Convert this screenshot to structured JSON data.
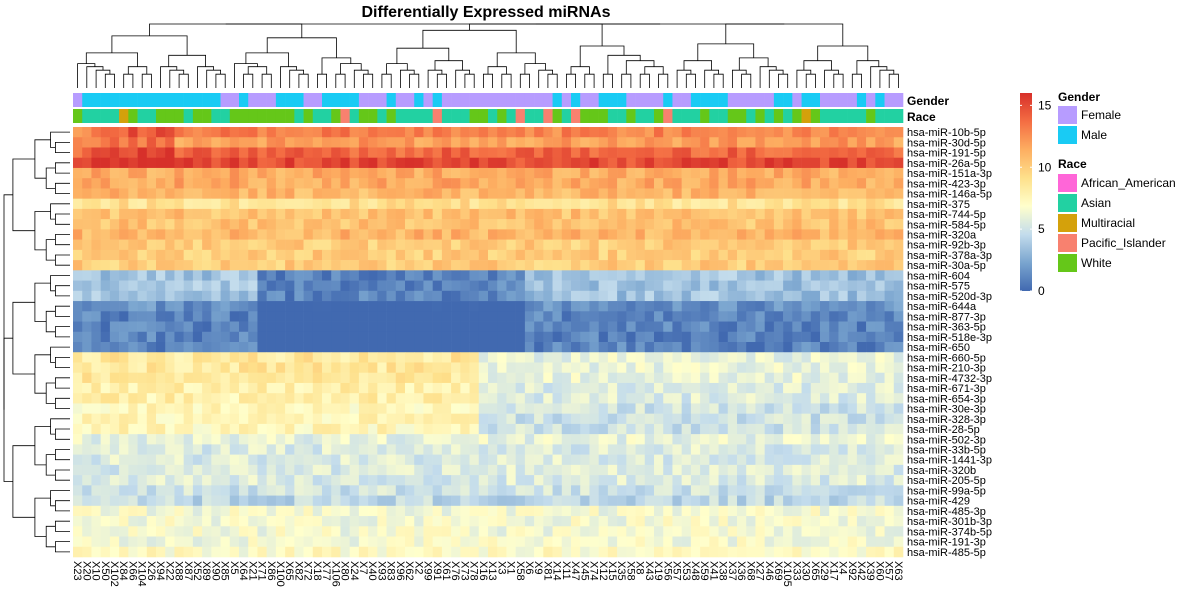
{
  "chart_data": {
    "type": "heatmap",
    "title": "Differentially Expressed miRNAs",
    "rows": [
      "hsa-miR-10b-5p",
      "hsa-miR-30d-5p",
      "hsa-miR-191-5p",
      "hsa-miR-26a-5p",
      "hsa-miR-151a-3p",
      "hsa-miR-423-3p",
      "hsa-miR-146a-5p",
      "hsa-miR-375",
      "hsa-miR-744-5p",
      "hsa-miR-584-5p",
      "hsa-miR-320a",
      "hsa-miR-92b-3p",
      "hsa-miR-378a-3p",
      "hsa-miR-30a-5p",
      "hsa-miR-604",
      "hsa-miR-575",
      "hsa-miR-520d-3p",
      "hsa-miR-644a",
      "hsa-miR-877-3p",
      "hsa-miR-363-5p",
      "hsa-miR-518e-3p",
      "hsa-miR-650",
      "hsa-miR-660-5p",
      "hsa-miR-210-3p",
      "hsa-miR-4732-3p",
      "hsa-miR-671-3p",
      "hsa-miR-654-3p",
      "hsa-miR-30e-3p",
      "hsa-miR-328-3p",
      "hsa-miR-28-5p",
      "hsa-miR-502-3p",
      "hsa-miR-33b-5p",
      "hsa-miR-1441-3p",
      "hsa-miR-320b",
      "hsa-miR-205-5p",
      "hsa-miR-99a-5p",
      "hsa-miR-429",
      "hsa-miR-485-3p",
      "hsa-miR-301b-3p",
      "hsa-miR-374b-5p",
      "hsa-miR-191-3p",
      "hsa-miR-485-5p"
    ],
    "columns": [
      "X23",
      "X20",
      "X10",
      "X50",
      "X102",
      "X84",
      "X66",
      "X104",
      "X26",
      "X94",
      "X22",
      "X88",
      "X87",
      "X52",
      "X89",
      "X90",
      "X85",
      "X5",
      "X64",
      "X21",
      "X71",
      "X86",
      "X100",
      "X65",
      "X82",
      "X72",
      "X18",
      "X77",
      "X106",
      "X80",
      "X24",
      "X7",
      "X40",
      "X93",
      "X83",
      "X96",
      "X62",
      "X2",
      "X99",
      "X91",
      "X61",
      "X76",
      "X73",
      "X78",
      "X16",
      "X13",
      "X3",
      "X1",
      "X58",
      "X6",
      "X9",
      "X81",
      "X14",
      "X11",
      "X47",
      "X45",
      "X74",
      "X12",
      "X15",
      "X35",
      "X58",
      "X8",
      "X43",
      "X19",
      "X56",
      "X57",
      "X53",
      "X48",
      "X59",
      "X41",
      "X38",
      "X37",
      "X36",
      "X68",
      "X27",
      "X46",
      "X69",
      "X105",
      "X33",
      "X30",
      "X65",
      "X29",
      "X17",
      "X4",
      "X92",
      "X42",
      "X39",
      "X60",
      "X57",
      "X63"
    ],
    "row_group_means": [
      13,
      12,
      14,
      15,
      11.5,
      11.5,
      11,
      9,
      10.5,
      10.5,
      11,
      10,
      10,
      10,
      3.5,
      3.5,
      3.5,
      1.5,
      1,
      1,
      1,
      1,
      8.5,
      8.5,
      8.5,
      8,
      8,
      7.5,
      7.5,
      7.5,
      6,
      5.5,
      5.5,
      5.5,
      5.5,
      5,
      4.5,
      6.5,
      6.5,
      6.5,
      6.5,
      7
    ],
    "color_scale": {
      "min": 0,
      "max": 16,
      "ticks": [
        0,
        5,
        10,
        15
      ],
      "colors": [
        "#4169b0",
        "#7aa5cf",
        "#c3dcec",
        "#ffffcc",
        "#fee08b",
        "#fdae61",
        "#f46d43",
        "#d7302a"
      ]
    },
    "annotations": {
      "gender_label": "Gender",
      "race_label": "Race"
    },
    "legend": {
      "gender_title": "Gender",
      "gender_items": [
        {
          "label": "Female",
          "color": "#b79cff"
        },
        {
          "label": "Male",
          "color": "#19cbf4"
        }
      ],
      "race_title": "Race",
      "race_items": [
        {
          "label": "African_American",
          "color": "#ff66d8"
        },
        {
          "label": "Asian",
          "color": "#22d1a2"
        },
        {
          "label": "Multiracial",
          "color": "#d4a10b"
        },
        {
          "label": "Pacific_Islander",
          "color": "#f8816f"
        },
        {
          "label": "White",
          "color": "#65c719"
        }
      ]
    },
    "gender_sequence": "FMMMMMMMMMMMMMMMFFMFFFMMMFFMMMMFFFMFFMFMFFFFFFFFFFFFMFMFFMMMFFFFMFFMMMMFFFFFMMFMMFFFFMFMF",
    "race_sequence": "WAAAAMWAAWWWAWWAAWWWWWWWAWAAWPAWWAWAAAAPAAAWWAWAPAAPWAPWWWAAWAAWPAAAWAAWWAWAWAWMWAAAAAWAAA"
  }
}
